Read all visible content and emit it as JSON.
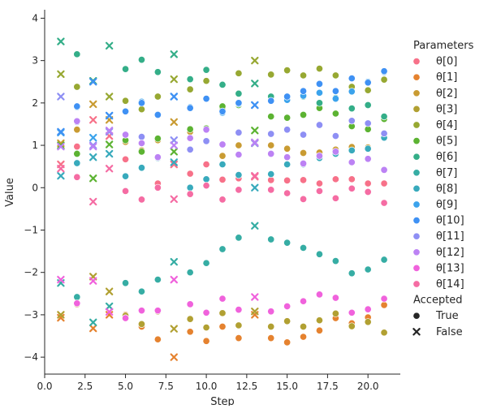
{
  "chart_data": {
    "type": "scatter",
    "title": "",
    "xlabel": "Step",
    "ylabel": "Value",
    "xlim": [
      0,
      22
    ],
    "ylim": [
      -4.4,
      4.2
    ],
    "x_ticks": [
      0,
      2.5,
      5,
      7.5,
      10,
      12.5,
      15,
      17.5,
      20
    ],
    "x_tick_labels": [
      "0.0",
      "2.5",
      "5.0",
      "7.5",
      "10.0",
      "12.5",
      "15.0",
      "17.5",
      "20.0"
    ],
    "y_ticks": [
      -4,
      -3,
      -2,
      -1,
      0,
      1,
      2,
      3,
      4
    ],
    "y_tick_labels": [
      "−4",
      "−3",
      "−2",
      "−1",
      "0",
      "1",
      "2",
      "3",
      "4"
    ],
    "grid": false,
    "legend": {
      "placement": "right",
      "hue_title": "Parameters",
      "style_title": "Accepted",
      "style_entries": [
        {
          "label": "True",
          "marker": "circle"
        },
        {
          "label": "False",
          "marker": "x"
        }
      ]
    },
    "x": [
      1,
      2,
      3,
      4,
      5,
      6,
      7,
      8,
      9,
      10,
      11,
      12,
      13,
      14,
      15,
      16,
      17,
      18,
      19,
      20,
      21
    ],
    "accepted": [
      "False",
      "True",
      "False",
      "False",
      "True",
      "True",
      "True",
      "False",
      "True",
      "True",
      "True",
      "True",
      "False",
      "True",
      "True",
      "True",
      "True",
      "True",
      "True",
      "True",
      "True"
    ],
    "series": [
      {
        "name": "θ[0]",
        "color": "#f77189",
        "values": [
          0.55,
          0.97,
          1.6,
          1.22,
          0.67,
          0.47,
          0.1,
          0.55,
          0.33,
          0.55,
          0.19,
          0.22,
          0.26,
          0.18,
          0.17,
          0.18,
          0.1,
          0.2,
          0.2,
          0.1,
          0.1
        ]
      },
      {
        "name": "θ[1]",
        "color": "#e5822f",
        "values": [
          -3.07,
          -2.6,
          -3.32,
          -3.0,
          -3.0,
          -3.28,
          -3.58,
          -4.0,
          -3.4,
          -3.62,
          -3.28,
          -3.55,
          -3.0,
          -3.55,
          -3.65,
          -3.52,
          -3.37,
          -3.08,
          -3.2,
          -3.06,
          -2.77
        ]
      },
      {
        "name": "θ[2]",
        "color": "#c99b32",
        "values": [
          1.05,
          1.37,
          1.97,
          1.6,
          1.08,
          0.88,
          1.12,
          1.55,
          1.32,
          1.1,
          0.75,
          1.0,
          1.05,
          1.0,
          0.92,
          0.82,
          0.83,
          0.9,
          0.96,
          0.95,
          1.25
        ]
      },
      {
        "name": "θ[3]",
        "color": "#b1a032",
        "values": [
          -3.0,
          -2.75,
          -2.1,
          -2.45,
          -3.02,
          -3.22,
          -2.92,
          -3.33,
          -3.1,
          -3.3,
          -2.96,
          -3.25,
          -2.92,
          -3.28,
          -3.15,
          -3.28,
          -3.13,
          -2.97,
          -3.27,
          -3.17,
          -3.42
        ]
      },
      {
        "name": "θ[4]",
        "color": "#97a832",
        "values": [
          2.68,
          2.38,
          2.52,
          2.15,
          2.05,
          1.85,
          2.15,
          2.56,
          2.32,
          2.52,
          1.87,
          2.7,
          3.0,
          2.67,
          2.77,
          2.65,
          2.81,
          2.65,
          2.38,
          2.3,
          2.55
        ]
      },
      {
        "name": "θ[5]",
        "color": "#5cb332",
        "values": [
          1.0,
          0.8,
          0.22,
          1.02,
          1.12,
          0.85,
          1.16,
          0.85,
          1.38,
          1.4,
          1.92,
          1.95,
          1.35,
          1.68,
          1.65,
          1.72,
          1.88,
          1.75,
          1.45,
          1.38,
          1.62
        ]
      },
      {
        "name": "θ[6]",
        "color": "#34ae88",
        "values": [
          3.45,
          3.15,
          2.52,
          3.35,
          2.8,
          3.02,
          2.73,
          3.15,
          2.56,
          2.78,
          2.43,
          2.22,
          2.46,
          2.15,
          2.13,
          2.15,
          2.0,
          2.12,
          1.87,
          1.95,
          1.68
        ]
      },
      {
        "name": "θ[7]",
        "color": "#36ada4",
        "values": [
          -2.25,
          -2.58,
          -3.18,
          -2.8,
          -2.25,
          -2.45,
          -2.17,
          -1.75,
          -2.0,
          -1.78,
          -1.45,
          -1.18,
          -0.9,
          -1.22,
          -1.3,
          -1.42,
          -1.57,
          -1.73,
          -2.02,
          -1.93,
          -1.7
        ]
      },
      {
        "name": "θ[8]",
        "color": "#38aabc",
        "values": [
          0.28,
          0.58,
          0.72,
          0.8,
          0.27,
          0.47,
          0.7,
          0.6,
          0.0,
          0.2,
          0.55,
          0.3,
          0.0,
          0.32,
          0.55,
          0.55,
          0.7,
          0.8,
          0.88,
          0.92,
          1.18
        ]
      },
      {
        "name": "θ[9]",
        "color": "#3ba3ec",
        "values": [
          1.3,
          1.9,
          1.18,
          1.7,
          1.8,
          2.03,
          1.73,
          2.15,
          1.9,
          2.1,
          1.77,
          1.98,
          1.95,
          2.05,
          2.07,
          2.17,
          2.24,
          2.1,
          2.27,
          2.5,
          2.73
        ]
      },
      {
        "name": "θ[10]",
        "color": "#3f91f4",
        "values": [
          1.32,
          1.92,
          2.5,
          1.7,
          1.8,
          2.0,
          1.72,
          2.15,
          1.88,
          2.1,
          1.8,
          2.0,
          1.95,
          2.05,
          2.15,
          2.28,
          2.45,
          2.28,
          2.58,
          2.48,
          2.75
        ]
      },
      {
        "name": "θ[11]",
        "color": "#8e8ff4",
        "values": [
          2.15,
          1.55,
          1.0,
          1.32,
          1.25,
          1.2,
          0.72,
          1.12,
          0.9,
          1.1,
          1.02,
          1.3,
          1.05,
          1.27,
          1.37,
          1.25,
          1.48,
          1.22,
          1.58,
          1.52,
          1.28
        ]
      },
      {
        "name": "θ[12]",
        "color": "#bc82f4",
        "values": [
          0.97,
          1.57,
          0.97,
          1.35,
          1.25,
          1.05,
          0.72,
          1.0,
          1.17,
          1.37,
          1.02,
          0.78,
          1.07,
          0.8,
          0.72,
          0.57,
          0.75,
          0.85,
          0.6,
          0.68,
          0.42
        ]
      },
      {
        "name": "θ[13]",
        "color": "#f062dc",
        "values": [
          -2.17,
          -2.73,
          -2.2,
          -2.93,
          -3.08,
          -2.9,
          -2.9,
          -2.17,
          -2.75,
          -2.95,
          -2.62,
          -2.88,
          -2.58,
          -2.92,
          -2.8,
          -2.68,
          -2.52,
          -2.6,
          -2.95,
          -2.87,
          -2.62
        ]
      },
      {
        "name": "θ[14]",
        "color": "#f56ca3",
        "values": [
          0.45,
          0.25,
          -0.33,
          0.45,
          -0.08,
          -0.28,
          0.0,
          -0.27,
          -0.15,
          0.05,
          -0.28,
          -0.05,
          0.28,
          -0.05,
          -0.13,
          -0.27,
          -0.08,
          -0.25,
          -0.02,
          -0.1,
          -0.36
        ]
      }
    ]
  }
}
